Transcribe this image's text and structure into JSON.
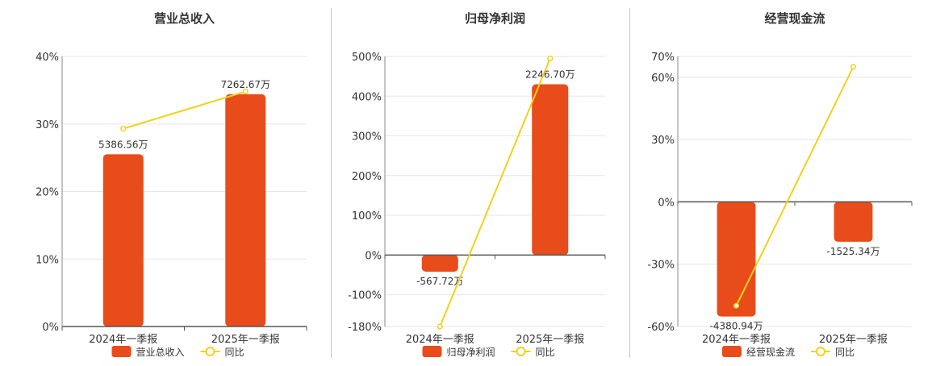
{
  "chart_data": [
    {
      "type": "bar",
      "title": "营业总收入",
      "categories": [
        "2024年一季报",
        "2025年一季报"
      ],
      "bar_series": {
        "name": "营业总收入",
        "values": [
          5386.56,
          7262.67
        ],
        "labels": [
          "5386.56万",
          "7262.67万"
        ],
        "color": "#e84c1a"
      },
      "line_series": {
        "name": "同比",
        "values": [
          29.3,
          34.8
        ],
        "color": "#f2d21b"
      },
      "ylim": [
        0,
        40
      ],
      "yticks": [
        0,
        10,
        20,
        30,
        40
      ],
      "ytick_labels": [
        "0%",
        "10%",
        "20%",
        "30%",
        "40%"
      ]
    },
    {
      "type": "bar",
      "title": "归母净利润",
      "categories": [
        "2024年一季报",
        "2025年一季报"
      ],
      "bar_series": {
        "name": "归母净利润",
        "values": [
          -567.72,
          2246.7
        ],
        "labels": [
          "-567.72万",
          "2246.70万"
        ],
        "color": "#e84c1a"
      },
      "line_series": {
        "name": "同比",
        "values": [
          -180,
          495
        ],
        "color": "#f2d21b"
      },
      "ylim": [
        -180,
        500
      ],
      "yticks": [
        -180,
        -100,
        0,
        100,
        200,
        300,
        400,
        500
      ],
      "ytick_labels": [
        "-180%",
        "-100%",
        "0%",
        "100%",
        "200%",
        "300%",
        "400%",
        "500%"
      ]
    },
    {
      "type": "bar",
      "title": "经营现金流",
      "categories": [
        "2024年一季报",
        "2025年一季报"
      ],
      "bar_series": {
        "name": "经营现金流",
        "values": [
          -4380.94,
          -1525.34
        ],
        "labels": [
          "-4380.94万",
          "-1525.34万"
        ],
        "color": "#e84c1a"
      },
      "line_series": {
        "name": "同比",
        "values": [
          -50,
          65
        ],
        "color": "#f2d21b"
      },
      "ylim": [
        -60,
        70
      ],
      "yticks": [
        -60,
        -30,
        0,
        30,
        60,
        70
      ],
      "ytick_labels": [
        "-60%",
        "-30%",
        "0%",
        "30%",
        "60%",
        "70%"
      ]
    }
  ]
}
